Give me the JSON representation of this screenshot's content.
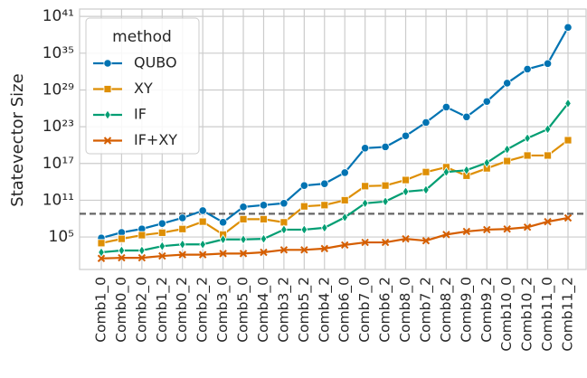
{
  "chart_data": {
    "type": "line",
    "y_label": "Statevector Size",
    "legend_title": "method",
    "legend_position": "upper left",
    "log_y": true,
    "grid": true,
    "categories": [
      "Comb1_0",
      "Comb0_0",
      "Comb2_0",
      "Comb1_2",
      "Comb0_2",
      "Comb2_2",
      "Comb3_0",
      "Comb5_0",
      "Comb4_0",
      "Comb3_2",
      "Comb5_2",
      "Comb4_2",
      "Comb6_0",
      "Comb7_0",
      "Comb6_2",
      "Comb8_0",
      "Comb7_2",
      "Comb8_2",
      "Comb9_0",
      "Comb9_2",
      "Comb10_0",
      "Comb10_2",
      "Comb11_0",
      "Comb11_2"
    ],
    "series": [
      {
        "name": "QUBO",
        "color": "#0173b2",
        "marker": "circle",
        "values": [
          70000.0,
          550000.0,
          2100000.0,
          16000000.0,
          130000000.0,
          2000000000.0,
          25000000.0,
          8000000000.0,
          16000000000.0,
          32000000000.0,
          25000000000000.0,
          50000000000000.0,
          3200000000000000.0,
          3.2e+19,
          5e+19,
          3.2e+21,
          5e+23,
          1.6e+26,
          4e+24,
          1.3e+27,
          1.3e+30,
          2.5e+32,
          2e+33,
          1.6e+39
        ]
      },
      {
        "name": "XY",
        "color": "#de8f05",
        "marker": "square",
        "values": [
          10000.0,
          50000.0,
          200000.0,
          500000.0,
          2000000.0,
          32000000.0,
          250000.0,
          80000000.0,
          80000000.0,
          25000000.0,
          10000000000.0,
          16000000000.0,
          100000000000.0,
          20000000000000.0,
          25000000000000.0,
          200000000000000.0,
          4000000000000000.0,
          2.5e+16,
          1000000000000000.0,
          1.6e+16,
          2.5e+17,
          2e+18,
          2e+18,
          6.3e+20
        ]
      },
      {
        "name": "IF",
        "color": "#029e73",
        "marker": "diamond",
        "values": [
          320,
          630,
          630,
          3200,
          6300,
          6300,
          40000.0,
          40000.0,
          50000.0,
          1600000.0,
          1600000.0,
          3200000.0,
          160000000.0,
          32000000000.0,
          63000000000.0,
          2500000000000.0,
          5000000000000.0,
          4000000000000000.0,
          8000000000000000.0,
          1.3e+17,
          2e+19,
          1.3e+21,
          4e+22,
          6.3e+26
        ]
      },
      {
        "name": "IF+XY",
        "color": "#d55e00",
        "marker": "x",
        "values": [
          32,
          40,
          40,
          80,
          130,
          130,
          200,
          200,
          320,
          800,
          800,
          1300,
          5000,
          13000.0,
          13000.0,
          50000.0,
          25000.0,
          250000.0,
          800000.0,
          1600000.0,
          2000000.0,
          4000000.0,
          32000000.0,
          130000000.0
        ]
      }
    ],
    "hline": {
      "value": 630000000.0,
      "color": "#666666",
      "style": "dashed"
    },
    "ylim": [
      0.5,
      1.6e+42
    ],
    "yticks": [
      {
        "value": 100000.0,
        "label": "10⁵"
      },
      {
        "value": 100000000000.0,
        "label": "10¹¹"
      },
      {
        "value": 1e+17,
        "label": "10¹⁷"
      },
      {
        "value": 1e+23,
        "label": "10²³"
      },
      {
        "value": 1e+29,
        "label": "10²⁹"
      },
      {
        "value": 1e+35,
        "label": "10³⁵"
      },
      {
        "value": 1e+41,
        "label": "10⁴¹"
      }
    ]
  }
}
